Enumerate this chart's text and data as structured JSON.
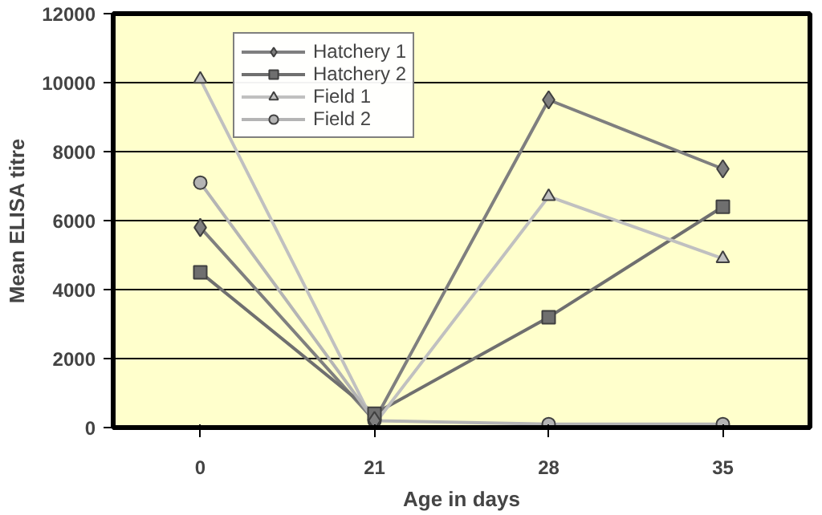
{
  "chart_data": {
    "type": "line",
    "xlabel": "Age in days",
    "ylabel": "Mean ELISA titre",
    "categories": [
      "0",
      "21",
      "28",
      "35"
    ],
    "series": [
      {
        "name": "Hatchery 1",
        "color": "#7f7f7f",
        "marker": "diamond",
        "values": [
          5800,
          200,
          9500,
          7500
        ]
      },
      {
        "name": "Hatchery 2",
        "color": "#6f6f6f",
        "marker": "square",
        "values": [
          4500,
          400,
          3200,
          6400
        ]
      },
      {
        "name": "Field 1",
        "color": "#c0c0c0",
        "marker": "triangle",
        "values": [
          10100,
          100,
          6700,
          4900
        ]
      },
      {
        "name": "Field 2",
        "color": "#b4b4b4",
        "marker": "circle",
        "values": [
          7100,
          200,
          100,
          100
        ]
      }
    ],
    "ylim": [
      0,
      12000
    ],
    "yticks": [
      0,
      2000,
      4000,
      6000,
      8000,
      10000,
      12000
    ],
    "grid": "y",
    "legend": "top",
    "line_style": "solid"
  }
}
